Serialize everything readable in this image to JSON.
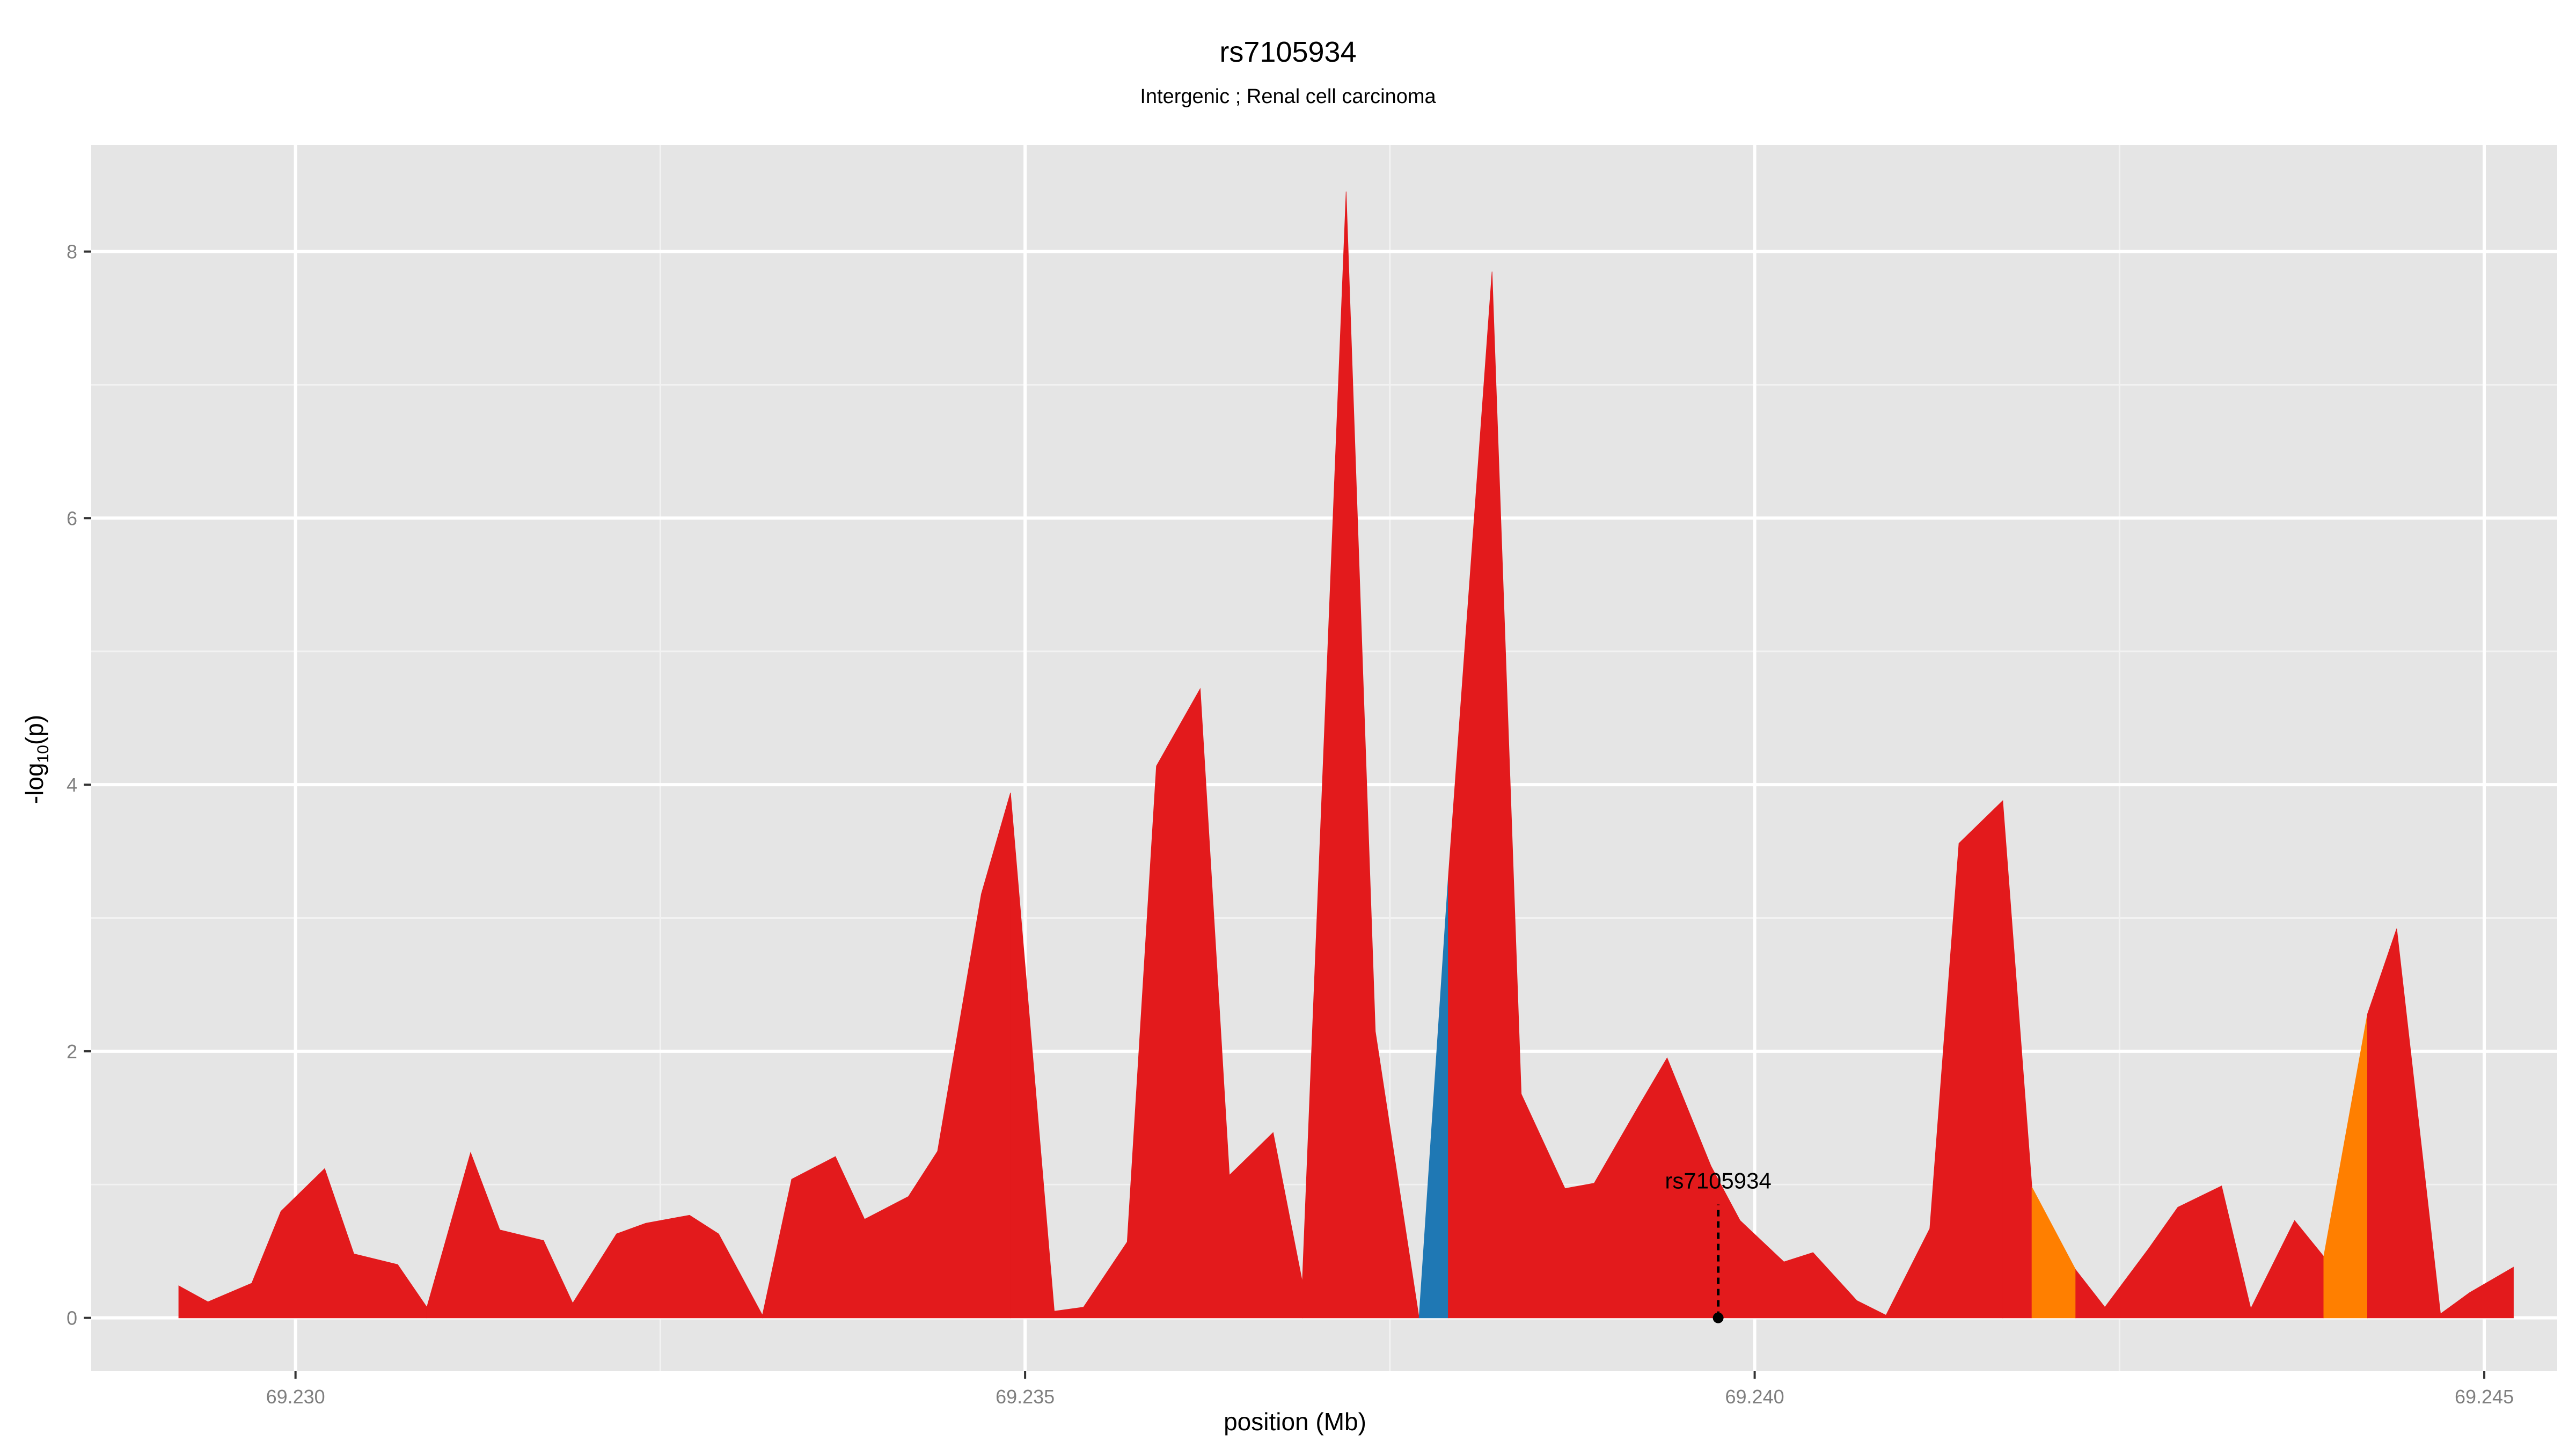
{
  "chart_data": {
    "type": "area",
    "title": "rs7105934",
    "subtitle": "Intergenic ; Renal cell carcinoma",
    "xlabel": "position (Mb)",
    "ylabel_main": "-log",
    "ylabel_sub": "10",
    "ylabel_end": "(p)",
    "xlim": [
      69.2286,
      69.2455
    ],
    "ylim": [
      -0.4,
      8.8
    ],
    "x_ticks": [
      69.23,
      69.235,
      69.24,
      69.245
    ],
    "x_tick_labels": [
      "69.230",
      "69.235",
      "69.240",
      "69.245"
    ],
    "y_ticks": [
      0,
      2,
      4,
      6,
      8
    ],
    "y_tick_labels": [
      "0",
      "2",
      "4",
      "6",
      "8"
    ],
    "grid": true,
    "series": [
      {
        "color": "#e31a1c",
        "x": [
          69.2292,
          69.2294,
          69.2297,
          69.2299,
          69.2302,
          69.2304,
          69.2307,
          69.2309
        ],
        "y": [
          0.24,
          0.12,
          0.26,
          0.8,
          1.12,
          0.48,
          0.4,
          0.08
        ]
      },
      {
        "color": "#e31a1c",
        "x": [
          69.2309,
          69.2312,
          69.2314,
          69.2317,
          69.2319,
          69.2322,
          69.2324,
          69.2327,
          69.2329,
          69.2332
        ],
        "y": [
          0.08,
          1.24,
          0.66,
          0.58,
          0.11,
          0.63,
          0.71,
          0.77,
          0.63,
          0.02
        ]
      },
      {
        "color": "#e31a1c",
        "x": [
          69.2332,
          69.2334,
          69.2337,
          69.2339,
          69.2342,
          69.2344,
          69.2347,
          69.2349
        ],
        "y": [
          0.02,
          1.04,
          1.21,
          0.74,
          0.91,
          1.25,
          3.18,
          3.94
        ]
      },
      {
        "color": "#e31a1c",
        "x": [
          69.2349,
          69.2352,
          69.2354,
          69.2357,
          69.2359,
          69.2362,
          69.2364,
          69.2367,
          69.2369
        ],
        "y": [
          3.94,
          0.05,
          0.08,
          0.57,
          4.14,
          4.72,
          1.07,
          1.39,
          0.27
        ]
      },
      {
        "color": "#e31a1c",
        "x": [
          69.2369,
          69.2372,
          69.2374,
          69.2377
        ],
        "y": [
          0.27,
          8.45,
          2.15,
          0.0
        ]
      },
      {
        "color": "#1f78b4",
        "x": [
          69.2377,
          69.2379
        ],
        "y": [
          0.0,
          3.3
        ]
      },
      {
        "color": "#e31a1c",
        "x": [
          69.2379,
          69.2382,
          69.2384,
          69.2387,
          69.2389,
          69.2392,
          69.2394,
          69.2397,
          69.2399,
          69.2402,
          69.2404,
          69.2407,
          69.2409,
          69.2412,
          69.2414,
          69.2417
        ],
        "y": [
          3.3,
          7.85,
          1.68,
          0.97,
          1.01,
          1.58,
          1.95,
          1.14,
          0.73,
          0.42,
          0.49,
          0.13,
          0.02,
          0.67,
          3.56,
          3.88
        ]
      },
      {
        "color": "#e31a1c",
        "x": [
          69.2417,
          69.2419
        ],
        "y": [
          3.88,
          0.98
        ]
      },
      {
        "color": "#ff7f00",
        "x": [
          69.2419,
          69.2422
        ],
        "y": [
          0.98,
          0.36
        ]
      },
      {
        "color": "#e31a1c",
        "x": [
          69.2422,
          69.2424,
          69.2427,
          69.2429,
          69.2432,
          69.2434,
          69.2437,
          69.2439
        ],
        "y": [
          0.36,
          0.08,
          0.52,
          0.83,
          0.99,
          0.07,
          0.73,
          0.46
        ]
      },
      {
        "color": "#ff7f00",
        "x": [
          69.2439,
          69.2442
        ],
        "y": [
          0.46,
          2.28
        ]
      },
      {
        "color": "#e31a1c",
        "x": [
          69.2442,
          69.2444,
          69.2447,
          69.2449,
          69.2452
        ],
        "y": [
          2.28,
          2.92,
          0.03,
          0.19,
          0.38
        ]
      }
    ],
    "annotation": {
      "label": "rs7105934",
      "x": 69.23975,
      "y": 0.0,
      "y_top": 0.85
    }
  }
}
